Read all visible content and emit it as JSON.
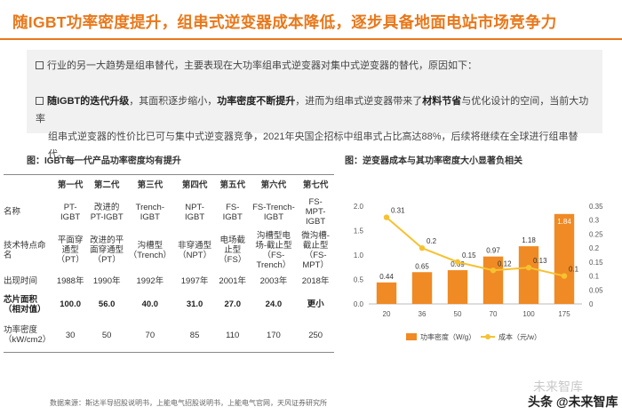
{
  "title": "随IGBT功率密度提升，组串式逆变器成本降低，逐步具备地面电站市场竞争力",
  "bullets": {
    "first": "行业的另一大趋势是组串替代，主要表现在大功率组串式逆变器对集中式逆变器的替代，原因如下：",
    "second_a": "随IGBT的迭代升级",
    "second_b": "，其面积逐步缩小，",
    "second_c": "功率密度不断提升",
    "second_d": "，进而为组串式逆变器带来了",
    "second_e": "材料节省",
    "second_f": "与优化设计的空间，当前大功率",
    "second_g": "组串式逆变器的性价比已可与集中式逆变器竞争，2021年央国企招标中组串式占比高达88%，后续将继续在全球进行组串替代。"
  },
  "left_figure": {
    "caption": "图：IGBT每一代产品功率密度均有提升",
    "headers": [
      "",
      "第一代",
      "第二代",
      "第三代",
      "第四代",
      "第五代",
      "第六代",
      "第七代"
    ],
    "rows": [
      {
        "label": "名称",
        "cells": [
          "PT-IGBT",
          "改进的PT-IGBT",
          "Trench-IGBT",
          "NPT-IGBT",
          "FS-IGBT",
          "FS-Trench-IGBT",
          "FS-MPT-IGBT"
        ]
      },
      {
        "label": "技术特点命名",
        "cells": [
          "平面穿通型（PT）",
          "改进的平面穿通型（PT）",
          "沟槽型（Trench）",
          "非穿通型（NPT）",
          "电场截止型（FS）",
          "沟槽型电场-截止型（FS-Trench）",
          "微沟槽-截止型（FS-MPT）"
        ]
      },
      {
        "label": "出现时间",
        "cells": [
          "1988年",
          "1990年",
          "1992年",
          "1997年",
          "2001年",
          "2003年",
          "2018年"
        ]
      },
      {
        "label": "芯片面积（相对值）",
        "cells": [
          "100.0",
          "56.0",
          "40.0",
          "31.0",
          "27.0",
          "24.0",
          "更小"
        ]
      },
      {
        "label": "功率密度（kW/cm2）",
        "cells": [
          "30",
          "50",
          "70",
          "85",
          "110",
          "170",
          "250"
        ]
      }
    ]
  },
  "right_figure": {
    "caption": "图：逆变器成本与其功率密度大小显著负相关"
  },
  "chart_data": {
    "type": "bar",
    "categories": [
      "20",
      "36",
      "50",
      "70",
      "100",
      "175"
    ],
    "series": [
      {
        "name": "功率密度（W/g）",
        "type": "bar",
        "axis": "left",
        "values": [
          0.44,
          0.65,
          0.69,
          0.97,
          1.18,
          1.84
        ]
      },
      {
        "name": "成本（元/w）",
        "type": "line",
        "axis": "right",
        "values": [
          0.31,
          0.2,
          0.15,
          0.12,
          0.13,
          0.1
        ]
      }
    ],
    "ylim_left": [
      0,
      2.0
    ],
    "yticks_left": [
      "0.0",
      "0.5",
      "1.0",
      "1.5",
      "2.0"
    ],
    "ylim_right": [
      0,
      0.35
    ],
    "yticks_right": [
      "0",
      "0.05",
      "0.1",
      "0.15",
      "0.2",
      "0.25",
      "0.3",
      "0.35"
    ],
    "legend_position": "bottom",
    "grid": false,
    "colors": {
      "bar": "#f08a24",
      "line": "#f5c231"
    }
  },
  "source": "数据来源：斯达半导招股说明书，上能电气招股说明书，上能电气官网，天风证券研究所",
  "watermark": {
    "top": "未来智库",
    "brand": "头条 @未来智库"
  },
  "colors": {
    "accent": "#e8781a",
    "panel": "#f1f1f1"
  }
}
